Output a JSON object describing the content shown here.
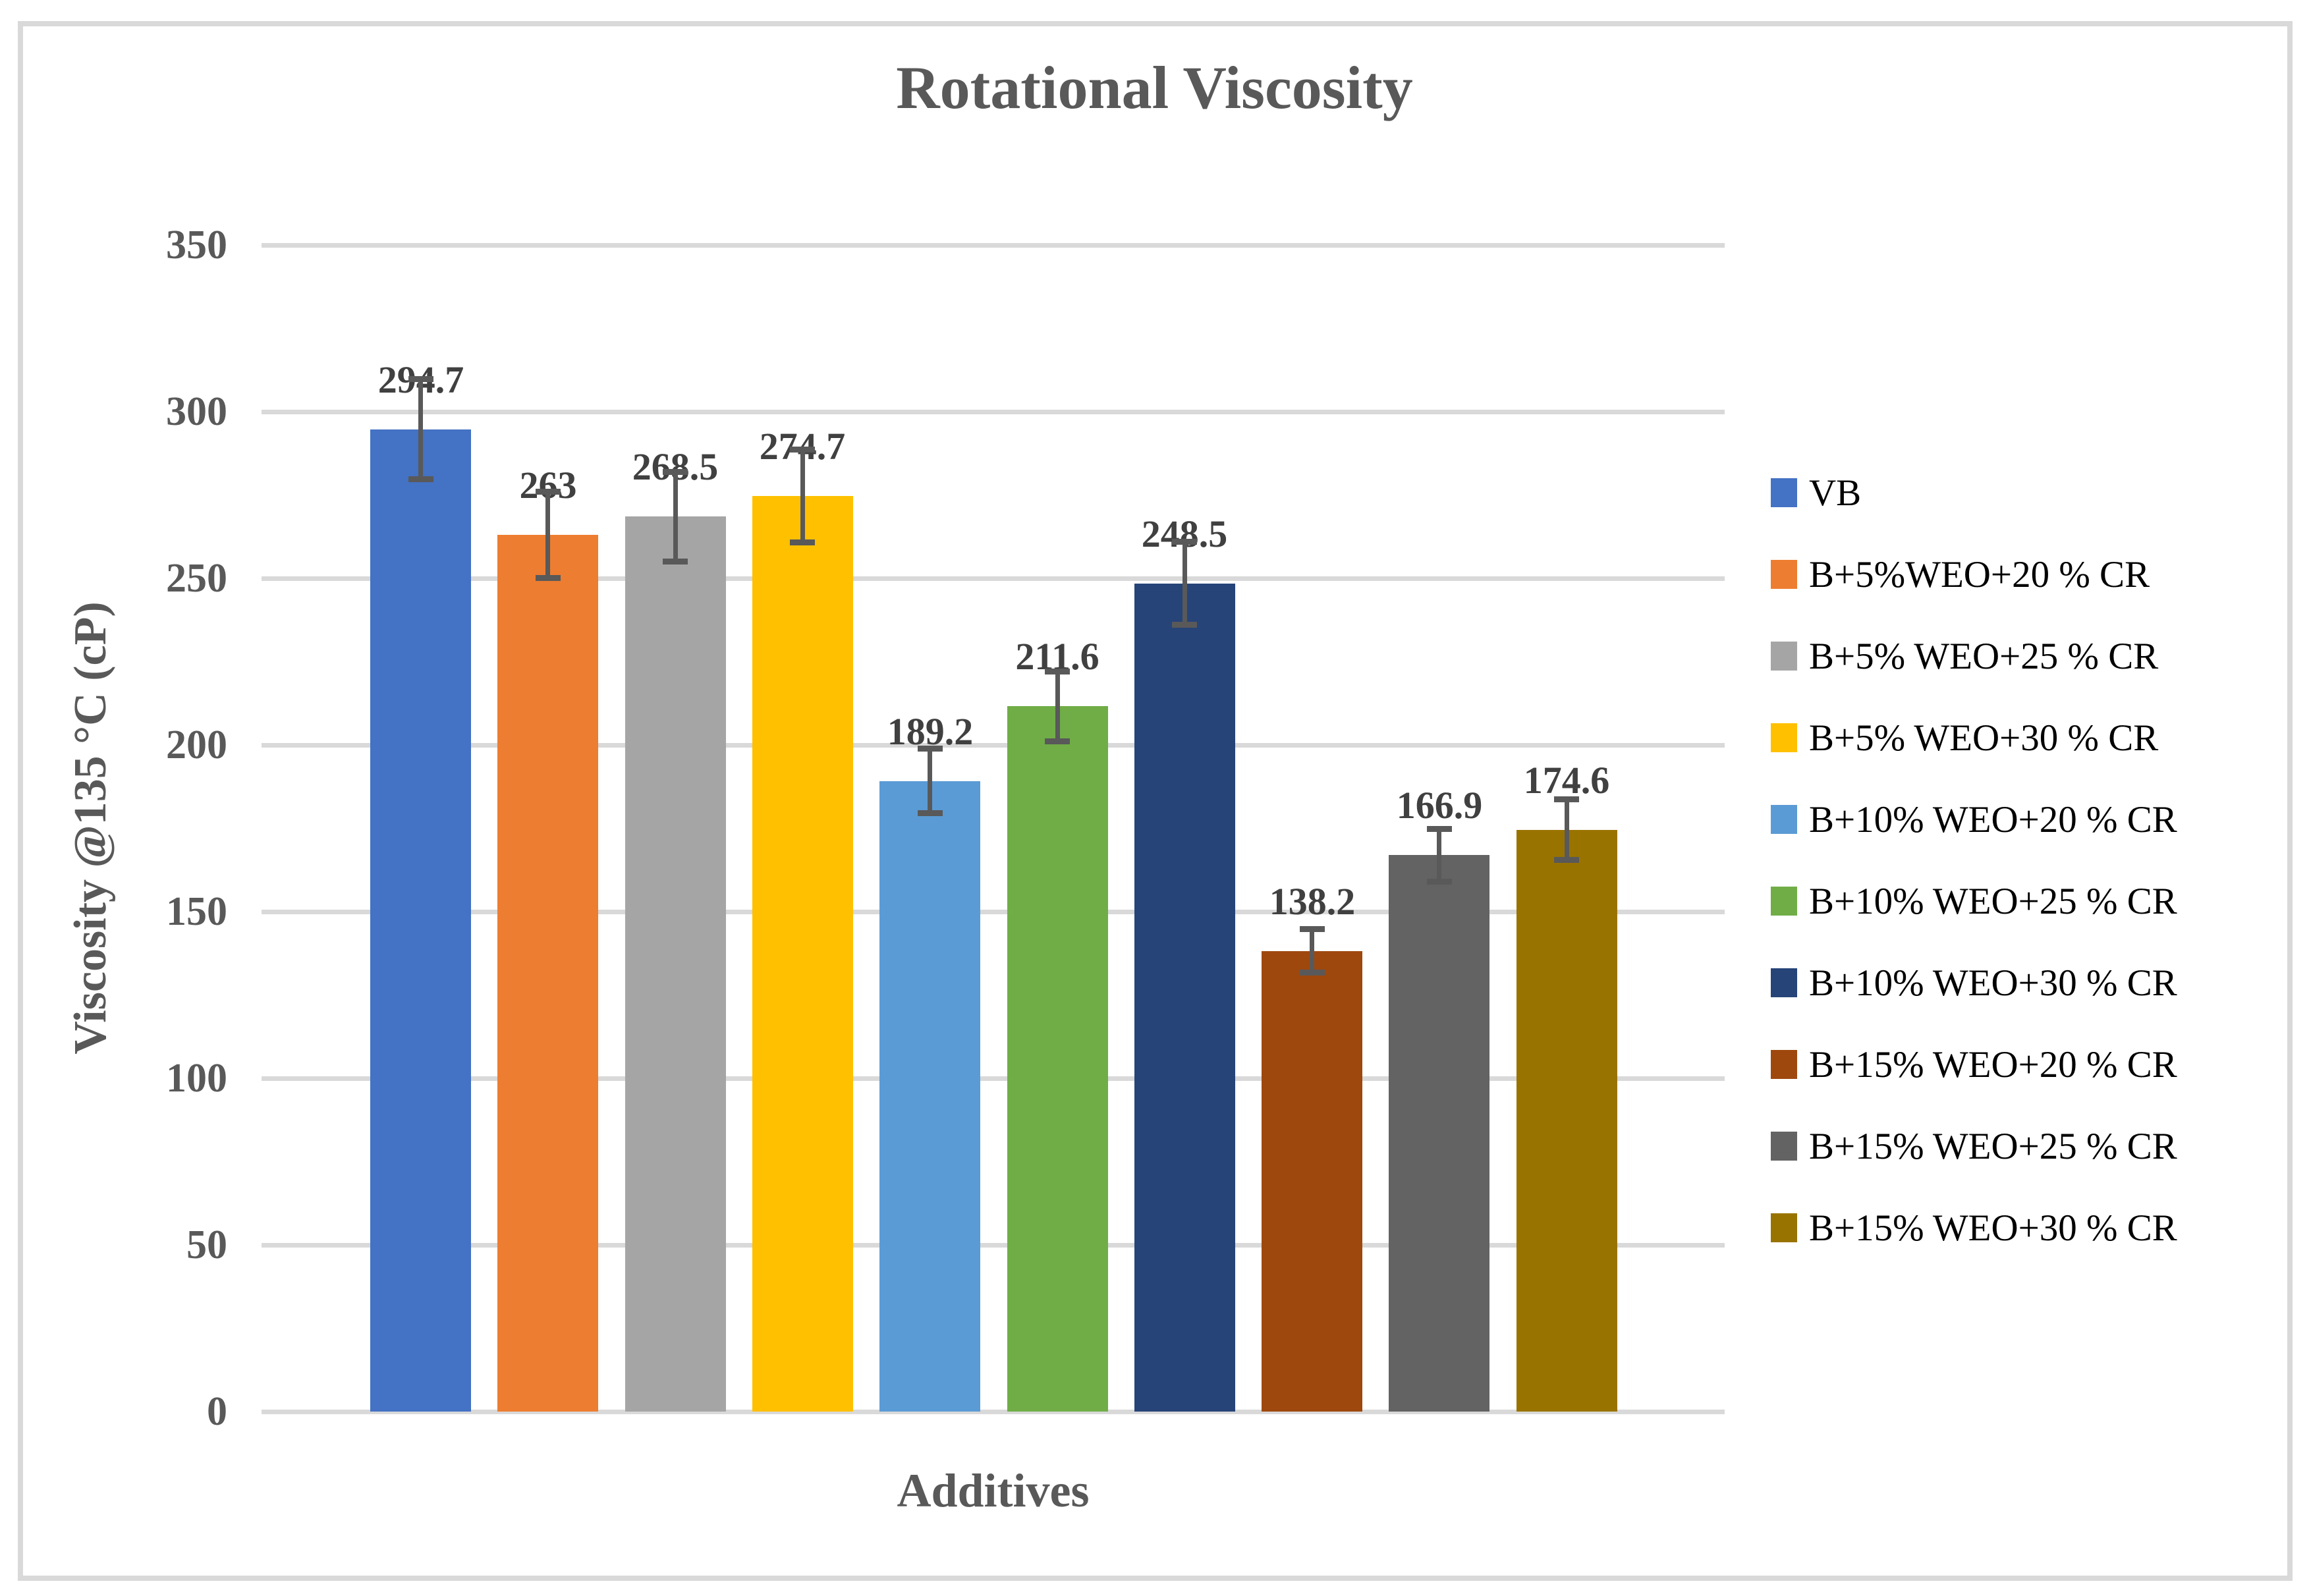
{
  "chart_data": {
    "type": "bar",
    "title": "Rotational Viscosity",
    "xlabel": "Additives",
    "ylabel": "Viscosity @135 °C (cP)",
    "ylim": [
      0,
      350
    ],
    "ytick_step": 50,
    "yticks": [
      0,
      50,
      100,
      150,
      200,
      250,
      300,
      350
    ],
    "grid": true,
    "legend_position": "right",
    "categories": [
      "VB",
      "B+5%WEO+20 % CR",
      "B+5% WEO+25 % CR",
      "B+5% WEO+30 % CR",
      "B+10% WEO+20 % CR",
      "B+10% WEO+25 % CR",
      "B+10% WEO+30 % CR",
      "B+15% WEO+20 % CR",
      "B+15% WEO+25 % CR",
      "B+15% WEO+30 % CR"
    ],
    "values": [
      294.7,
      263,
      268.5,
      274.7,
      189.2,
      211.6,
      248.5,
      138.2,
      166.9,
      174.6
    ],
    "data_labels": [
      "294.7",
      "263",
      "268.5",
      "274.7",
      "189.2",
      "211.6",
      "248.5",
      "138.2",
      "166.9",
      "174.6"
    ],
    "errors": [
      15,
      13,
      13.5,
      14,
      9.7,
      10.5,
      12.5,
      6.5,
      8,
      9
    ],
    "colors": [
      "#4472C4",
      "#ED7D31",
      "#A5A5A5",
      "#FFC000",
      "#5B9BD5",
      "#70AD47",
      "#264478",
      "#9E480E",
      "#636363",
      "#997300"
    ]
  },
  "style": {
    "background": "#FFFFFF",
    "border_color": "#D9D9D9",
    "gridline_color": "#D9D9D9",
    "axis_text_color": "#595959",
    "data_label_color": "#404040",
    "error_bar_color": "#595959",
    "legend_text_color": "#000000"
  }
}
